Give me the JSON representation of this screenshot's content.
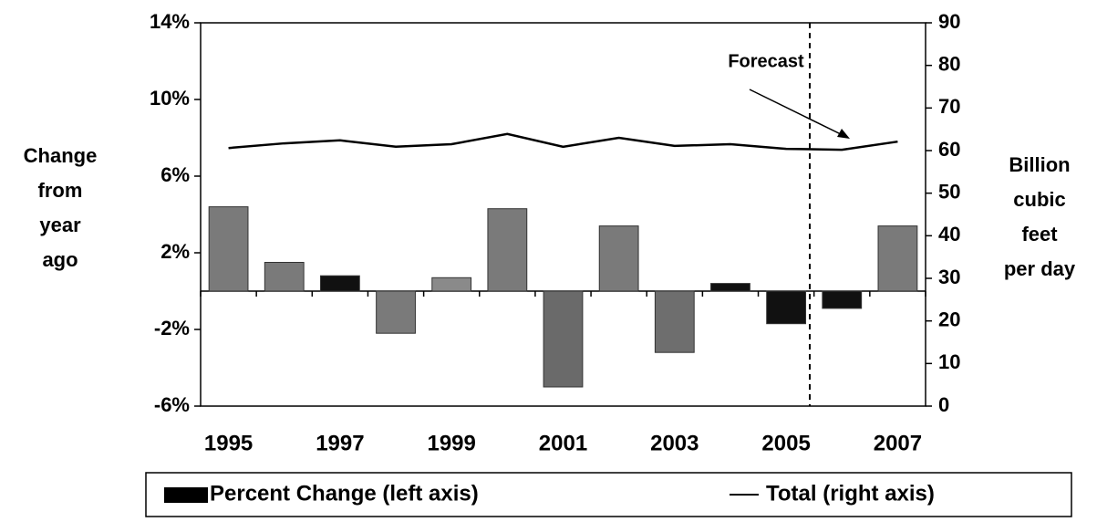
{
  "chart_data": {
    "type": "bar",
    "categories": [
      "1995",
      null,
      "1997",
      null,
      "1999",
      null,
      "2001",
      null,
      "2003",
      null,
      "2005",
      null,
      "2007"
    ],
    "series": [
      {
        "name": "Percent Change (left axis)",
        "type": "bar",
        "color": "#000000",
        "bar_colors": [
          "#7a7a7a",
          "#7a7a7a",
          "#111111",
          "#7a7a7a",
          "#8a8a8a",
          "#7a7a7a",
          "#6a6a6a",
          "#7a7a7a",
          "#6e6e6e",
          "#111111",
          "#111111",
          "#111111",
          "#7a7a7a"
        ],
        "values": [
          4.4,
          1.5,
          0.8,
          -2.2,
          0.7,
          4.3,
          -5.0,
          3.4,
          -3.2,
          0.4,
          -1.7,
          -0.9,
          3.4
        ]
      },
      {
        "name": "Total (right axis)",
        "type": "line",
        "axis": "y2",
        "color": "#000000",
        "values": [
          60.6,
          61.7,
          62.4,
          60.9,
          61.5,
          63.9,
          60.9,
          63.0,
          61.1,
          61.5,
          60.4,
          60.2,
          62.1
        ]
      }
    ],
    "ylabel": [
      "Change",
      "from",
      "year",
      "ago"
    ],
    "y2label": [
      "Billion",
      "cubic",
      "feet",
      "per day"
    ],
    "ylim": [
      -6,
      14
    ],
    "yticks": [
      {
        "value": -6,
        "label": "-6%"
      },
      {
        "value": -2,
        "label": "-2%"
      },
      {
        "value": 2,
        "label": "2%"
      },
      {
        "value": 6,
        "label": "6%"
      },
      {
        "value": 10,
        "label": "10%"
      },
      {
        "value": 14,
        "label": "14%"
      }
    ],
    "y2lim": [
      0,
      90
    ],
    "y2ticks": [
      0,
      10,
      20,
      30,
      40,
      50,
      60,
      70,
      80,
      90
    ],
    "annotation": "Forecast",
    "legend": "bottom"
  }
}
